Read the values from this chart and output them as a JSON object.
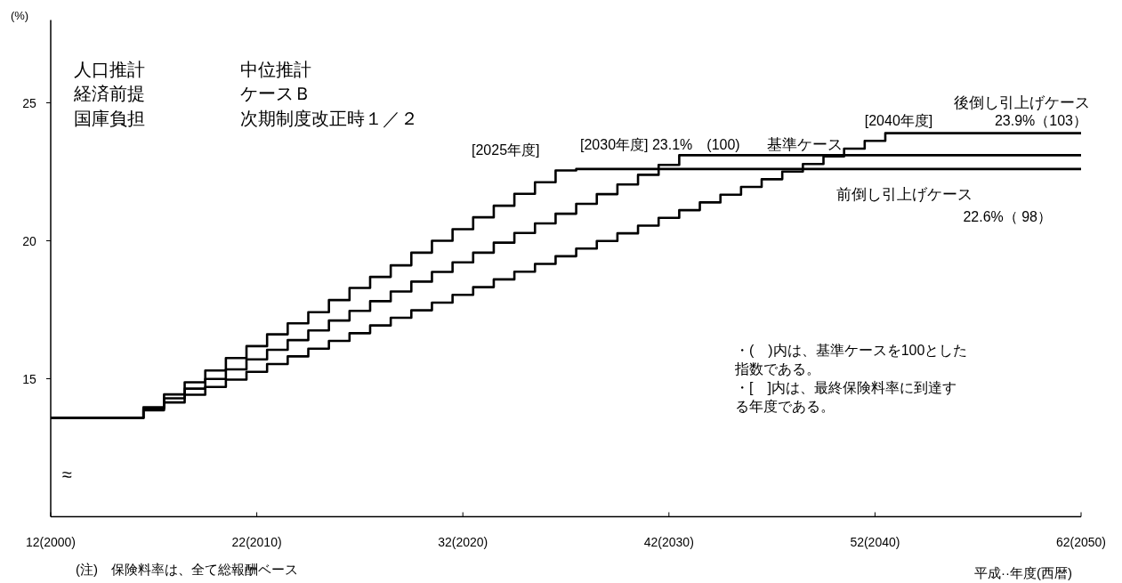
{
  "chart_data": {
    "type": "step",
    "xlabel": "平成··年度(西暦)",
    "ylabel": "(%)",
    "categories": [
      "12(2000)",
      null,
      null,
      null,
      null,
      null,
      null,
      null,
      null,
      null,
      "22(2010)",
      null,
      null,
      null,
      null,
      null,
      null,
      null,
      null,
      null,
      "32(2020)",
      null,
      null,
      null,
      null,
      null,
      null,
      null,
      null,
      null,
      "42(2030)",
      null,
      null,
      null,
      null,
      null,
      null,
      null,
      null,
      null,
      "52(2040)",
      null,
      null,
      null,
      null,
      null,
      null,
      null,
      null,
      null,
      "62(2050)"
    ],
    "ylim": [
      10,
      28
    ],
    "yticks": [
      15,
      20,
      25
    ],
    "grid": false,
    "legend": false,
    "line_style": "solid",
    "series": [
      {
        "name": "後倒し引上げケース",
        "color": "#000000",
        "values": [
          13.58,
          13.58,
          13.58,
          13.58,
          13.58,
          13.86,
          14.14,
          14.42,
          14.7,
          14.97,
          15.25,
          15.53,
          15.81,
          16.09,
          16.37,
          16.65,
          16.93,
          17.21,
          17.48,
          17.76,
          18.04,
          18.32,
          18.6,
          18.88,
          19.16,
          19.44,
          19.72,
          19.99,
          20.27,
          20.55,
          20.83,
          21.11,
          21.39,
          21.67,
          21.95,
          22.23,
          22.51,
          22.78,
          23.06,
          23.34,
          23.62,
          23.9,
          23.9,
          23.9,
          23.9,
          23.9,
          23.9,
          23.9,
          23.9,
          23.9,
          23.9
        ]
      },
      {
        "name": "基準ケース",
        "color": "#000000",
        "values": [
          13.58,
          13.58,
          13.58,
          13.58,
          13.58,
          13.93,
          14.29,
          14.64,
          14.99,
          15.34,
          15.7,
          16.05,
          16.4,
          16.75,
          17.11,
          17.46,
          17.81,
          18.16,
          18.52,
          18.87,
          19.22,
          19.57,
          19.93,
          20.28,
          20.63,
          20.98,
          21.34,
          21.69,
          22.04,
          22.39,
          22.75,
          23.1,
          23.1,
          23.1,
          23.1,
          23.1,
          23.1,
          23.1,
          23.1,
          23.1,
          23.1,
          23.1,
          23.1,
          23.1,
          23.1,
          23.1,
          23.1,
          23.1,
          23.1,
          23.1,
          23.1
        ]
      },
      {
        "name": "前倒し引上げケース",
        "color": "#000000",
        "values": [
          13.58,
          13.58,
          13.58,
          13.58,
          13.58,
          13.97,
          14.43,
          14.87,
          15.3,
          15.75,
          16.18,
          16.61,
          17.01,
          17.41,
          17.85,
          18.29,
          18.69,
          19.11,
          19.57,
          20.0,
          20.42,
          20.85,
          21.27,
          21.7,
          22.12,
          22.55,
          22.6,
          22.6,
          22.6,
          22.6,
          22.6,
          22.6,
          22.6,
          22.6,
          22.6,
          22.6,
          22.6,
          22.6,
          22.6,
          22.6,
          22.6,
          22.6,
          22.6,
          22.6,
          22.6,
          22.6,
          22.6,
          22.6,
          22.6,
          22.6,
          22.6
        ]
      }
    ],
    "annotations": [
      "人口推計",
      "経済前提",
      "国庫負担",
      "中位推計",
      "ケースＢ",
      "次期制度改正時１／２",
      "[2040年度]",
      "23.9%（103）",
      "[2030年度] 23.1%　(100)",
      "[2025年度]",
      "22.6%（ 98）",
      "≈",
      "・(　)内は、基準ケースを100とした指数である。",
      "・[　]内は、最終保険料率に到達する年度である。",
      "(注)　保険料率は、全て総報酬ベース"
    ]
  }
}
